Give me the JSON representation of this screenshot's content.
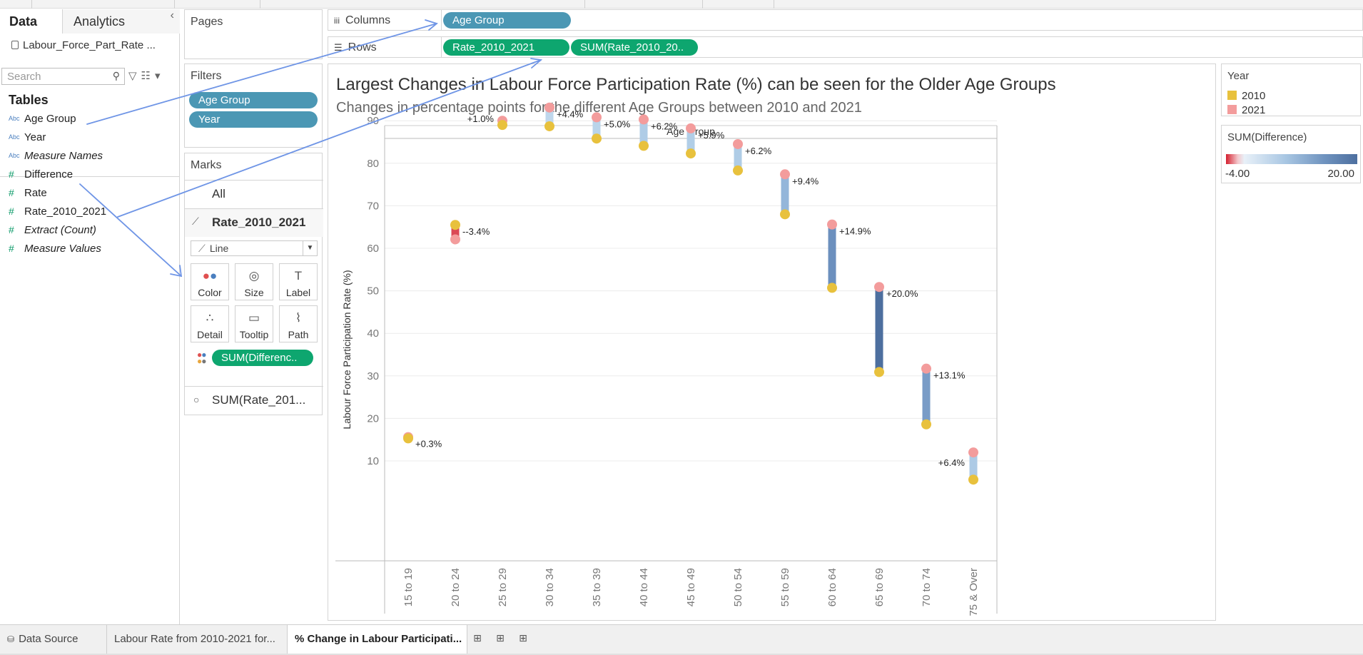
{
  "data_pane": {
    "tabs": [
      "Data",
      "Analytics"
    ],
    "collapse_icon": "chevron-left-icon",
    "datasource": "Labour_Force_Part_Rate ...",
    "search_placeholder": "Search",
    "tables_heading": "Tables",
    "fields": [
      {
        "type": "Abc",
        "name": "Age Group",
        "italic": false
      },
      {
        "type": "Abc",
        "name": "Year",
        "italic": false
      },
      {
        "type": "Abc",
        "name": "Measure Names",
        "italic": true
      },
      {
        "type": "#",
        "name": "Difference",
        "italic": false
      },
      {
        "type": "#",
        "name": "Rate",
        "italic": false
      },
      {
        "type": "#",
        "name": "Rate_2010_2021",
        "italic": false
      },
      {
        "type": "#",
        "name": "Extract (Count)",
        "italic": true
      },
      {
        "type": "#",
        "name": "Measure Values",
        "italic": true
      }
    ]
  },
  "pages_card": {
    "title": "Pages"
  },
  "filters_card": {
    "title": "Filters",
    "pills": [
      "Age Group",
      "Year"
    ]
  },
  "marks_card": {
    "title": "Marks",
    "all_label": "All",
    "active_layer": "Rate_2010_2021",
    "mark_type": "Line",
    "buttons": [
      "Color",
      "Size",
      "Label",
      "Detail",
      "Tooltip",
      "Path"
    ],
    "color_pill": "SUM(Differenc..",
    "second_layer": "SUM(Rate_201..."
  },
  "shelves": {
    "columns_label": "Columns",
    "rows_label": "Rows",
    "columns_pills": [
      "Age Group"
    ],
    "rows_pills": [
      "Rate_2010_2021",
      "SUM(Rate_2010_20.."
    ]
  },
  "viz": {
    "title": "Largest Changes in Labour Force Participation Rate (%) can be seen for the Older Age Groups",
    "subtitle": "Changes in percentage points for the different Age Groups between 2010 and 2021"
  },
  "chart_data": {
    "type": "line",
    "header": "Age Group",
    "ylabel": "Labour Force Participation Rate (%)",
    "ylim": [
      0,
      98
    ],
    "yticks": [
      10,
      20,
      30,
      40,
      50,
      60,
      70,
      80,
      90
    ],
    "categories": [
      "15 to 19",
      "20 to 24",
      "25 to 29",
      "30 to 34",
      "35 to 39",
      "40 to 44",
      "45 to 49",
      "50 to 54",
      "55 to 59",
      "60 to 64",
      "65 to 69",
      "70 to 74",
      "75 & Over"
    ],
    "series": [
      {
        "name": "2010",
        "color": "#e8c13d",
        "values": [
          15.3,
          65.5,
          89.0,
          88.7,
          85.8,
          84.1,
          82.3,
          78.3,
          68.0,
          50.7,
          30.9,
          18.6,
          5.6
        ]
      },
      {
        "name": "2021",
        "color": "#f39c9c",
        "values": [
          15.6,
          62.1,
          90.0,
          93.1,
          90.8,
          90.3,
          88.2,
          84.5,
          77.4,
          65.6,
          50.9,
          31.7,
          12.0
        ]
      }
    ],
    "difference": [
      0.3,
      -3.4,
      1.0,
      4.4,
      5.0,
      6.2,
      5.9,
      6.2,
      9.4,
      14.9,
      20.0,
      13.1,
      6.4
    ],
    "labels": [
      "+0.3%",
      "--3.4%",
      "+1.0%",
      "+4.4%",
      "+5.0%",
      "+6.2%",
      "+5.9%",
      "+6.2%",
      "+9.4%",
      "+14.9%",
      "+20.0%",
      "+13.1%",
      "+6.4%"
    ],
    "grid": true
  },
  "legends": {
    "year_title": "Year",
    "year_items": [
      {
        "label": "2010",
        "color": "#e8c13d"
      },
      {
        "label": "2021",
        "color": "#f39c9c"
      }
    ],
    "diff_title": "SUM(Difference)",
    "diff_min": "-4.00",
    "diff_max": "20.00"
  },
  "bottom_tabs": [
    "Data Source",
    "Labour Rate from 2010-2021 for...",
    "% Change in Labour Participati..."
  ],
  "bottom_icons": [
    "new-worksheet-icon",
    "new-dashboard-icon",
    "new-story-icon"
  ]
}
